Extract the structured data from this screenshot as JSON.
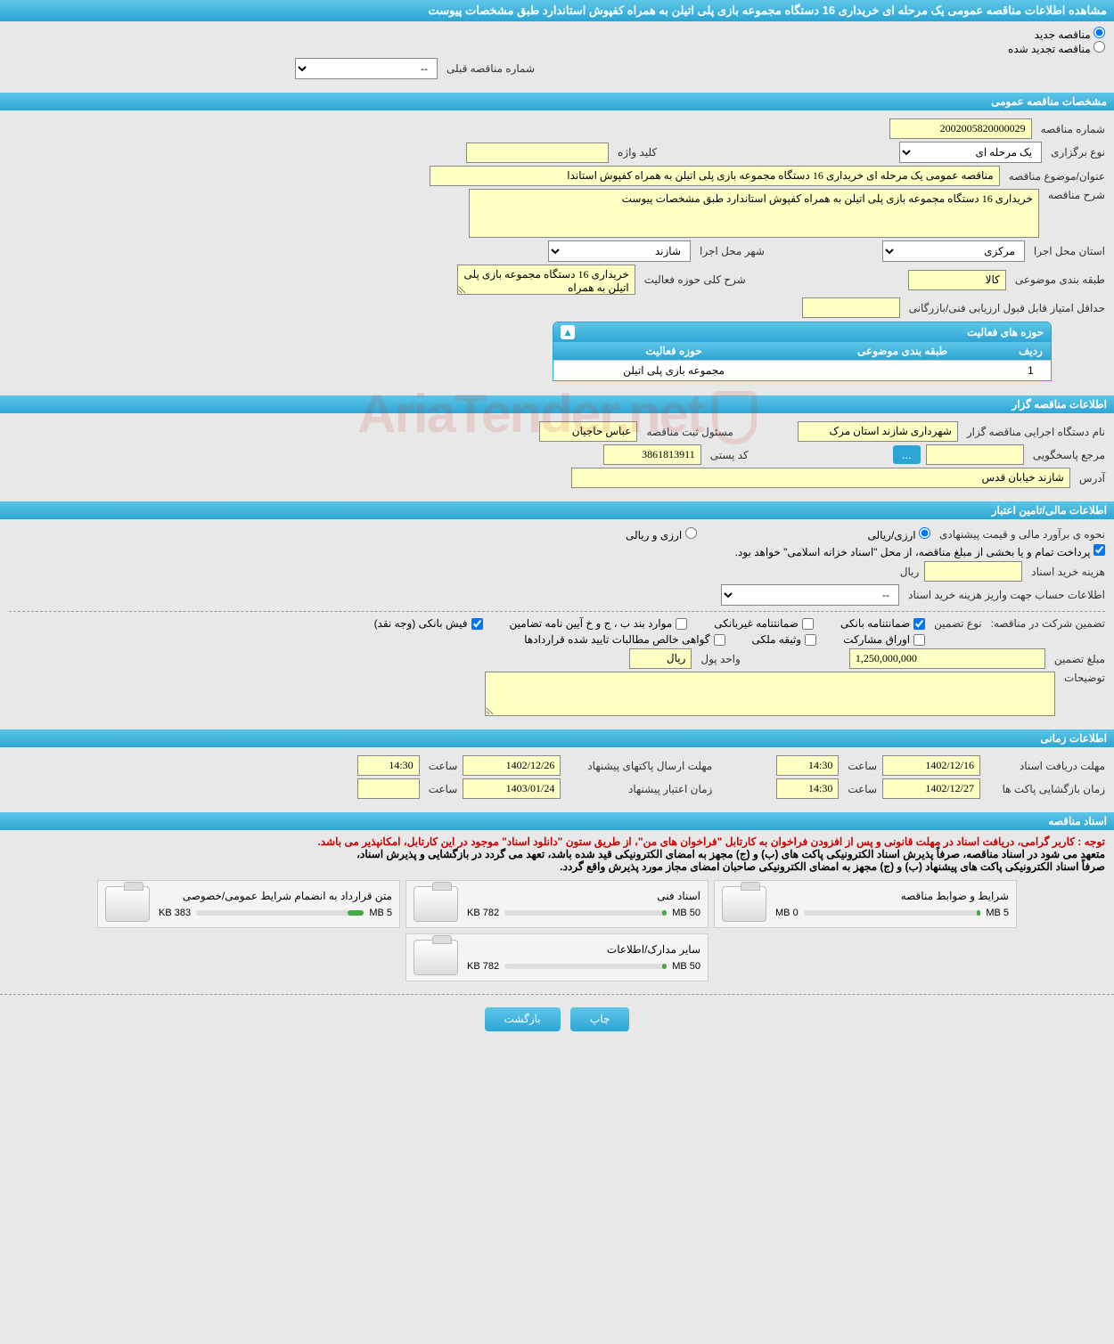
{
  "header": {
    "title": "مشاهده اطلاعات مناقصه عمومی یک مرحله ای خریداری 16 دستگاه مجموعه بازی پلی اتیلن به همراه کفپوش استاندارد طبق مشخصات پیوست"
  },
  "tender_type": {
    "new_label": "مناقصه جدید",
    "renewed_label": "مناقصه تجدید شده",
    "selected": "new"
  },
  "prev_number": {
    "label": "شماره مناقصه قبلی",
    "value": "--"
  },
  "sections": {
    "general": "مشخصات مناقصه عمومی",
    "holder": "اطلاعات مناقصه گزار",
    "financial": "اطلاعات مالی/تامین اعتبار",
    "timing": "اطلاعات زمانی",
    "documents": "اسناد مناقصه"
  },
  "general": {
    "number_label": "شماره مناقصه",
    "number": "2002005820000029",
    "holding_type_label": "نوع برگزاری",
    "holding_type": "یک مرحله ای",
    "keyword_label": "کلید واژه",
    "keyword": "",
    "title_label": "عنوان/موضوع مناقصه",
    "title": "مناقصه عمومی یک مرحله ای خریداری 16 دستگاه مجموعه بازی پلی اتیلن به همراه کفپوش استاندا",
    "desc_label": "شرح مناقصه",
    "desc": "خریداری 16 دستگاه مجموعه بازی پلی اتیلن به همراه کفپوش استاندارد طبق مشخصات پیوست",
    "province_label": "استان محل اجرا",
    "province": "مرکزی",
    "city_label": "شهر محل اجرا",
    "city": "شازند",
    "category_label": "طبقه بندی موضوعی",
    "category": "کالا",
    "activity_desc_label": "شرح کلی حوزه فعالیت",
    "activity_desc": "خریداری 16 دستگاه مجموعه بازی پلی اتیلن به همراه",
    "min_score_label": "حداقل امتیاز قابل قبول ارزیابی فنی/بازرگانی",
    "min_score": ""
  },
  "activity_table": {
    "title": "حوزه های فعالیت",
    "col_index": "ردیف",
    "col_category": "طبقه بندی موضوعی",
    "col_activity": "حوزه فعالیت",
    "rows": [
      {
        "idx": "1",
        "category": "",
        "activity": "مجموعه بازی پلی اتیلن"
      }
    ]
  },
  "holder": {
    "exec_label": "نام دستگاه اجرایی مناقصه گزار",
    "exec": "شهرداری شازند استان مرک",
    "registrar_label": "مسئول ثبت مناقصه",
    "registrar": "عباس حاجیان",
    "respond_label": "مرجع پاسخگویی",
    "respond": "",
    "btn_dots": "...",
    "postal_label": "کد پستی",
    "postal": "3861813911",
    "address_label": "آدرس",
    "address": "شازند خیابان قدس"
  },
  "financial": {
    "estimate_label": "نحوه ی برآورد مالی و قیمت پیشنهادی",
    "currency_rial": "ارزی/ریالی",
    "currency_both": "ارزی و ریالی",
    "payment_note": "پرداخت تمام و یا بخشی از مبلغ مناقصه، از محل \"اسناد خزانه اسلامی\" خواهد بود.",
    "doc_cost_label": "هزینه خرید اسناد",
    "doc_cost": "",
    "rial_unit": "ریال",
    "account_label": "اطلاعات حساب جهت واریز هزینه خرید اسناد",
    "account": "--",
    "guarantee_section_label": "تضمین شرکت در مناقصه:",
    "guarantee_type_label": "نوع تضمین",
    "guarantee_types": {
      "bank": "ضمانتنامه بانکی",
      "nonbank": "ضمانتنامه غیربانکی",
      "cases": "موارد بند ب ، ج و خ آیین نامه تضامین",
      "cash": "فیش بانکی (وجه نقد)",
      "bonds": "اوراق مشارکت",
      "property": "وثیقه ملکی",
      "contracts": "گواهی خالص مطالبات تایید شده قراردادها"
    },
    "guarantee_amount_label": "مبلغ تضمین",
    "guarantee_amount": "1,250,000,000",
    "currency_unit_label": "واحد پول",
    "currency_unit": "ریال",
    "notes_label": "توضیحات",
    "notes": ""
  },
  "timing": {
    "receive_label": "مهلت دریافت اسناد",
    "receive_date": "1402/12/16",
    "time_label": "ساعت",
    "receive_time": "14:30",
    "send_label": "مهلت ارسال پاکتهای پیشنهاد",
    "send_date": "1402/12/26",
    "send_time": "14:30",
    "open_label": "زمان بازگشایی پاکت ها",
    "open_date": "1402/12/27",
    "open_time": "14:30",
    "validity_label": "زمان اعتبار پیشنهاد",
    "validity_date": "1403/01/24",
    "validity_time": ""
  },
  "documents": {
    "warning": "توجه : کاربر گرامی، دریافت اسناد در مهلت قانونی و پس از افزودن فراخوان به کارتابل \"فراخوان های من\"، از طریق ستون \"دانلود اسناد\" موجود در این کارتابل، امکانپذیر می باشد.",
    "note1": "متعهد می شود در اسناد مناقصه، صرفاً پذیرش اسناد الکترونیکی پاکت های (ب) و (ج) مجهز به امضای الکترونیکی قید شده باشد، تعهد می گردد در بازگشایی و پذیرش اسناد،",
    "note2": "صرفاً اسناد الکترونیکی پاکت های پیشنهاد (ب) و (ج) مجهز به امضای الکترونیکی صاحبان امضای مجاز مورد پذیرش واقع گردد.",
    "cards": [
      {
        "title": "شرایط و ضوابط مناقصه",
        "used": "0 MB",
        "total": "5 MB",
        "pct": 2
      },
      {
        "title": "اسناد فنی",
        "used": "782 KB",
        "total": "50 MB",
        "pct": 3
      },
      {
        "title": "متن قرارداد به انضمام شرایط عمومی/خصوصی",
        "used": "383 KB",
        "total": "5 MB",
        "pct": 10
      },
      {
        "title": "سایر مدارک/اطلاعات",
        "used": "782 KB",
        "total": "50 MB",
        "pct": 3
      }
    ]
  },
  "footer": {
    "print": "چاپ",
    "back": "بازگشت"
  },
  "watermark": "AriaTender.net"
}
